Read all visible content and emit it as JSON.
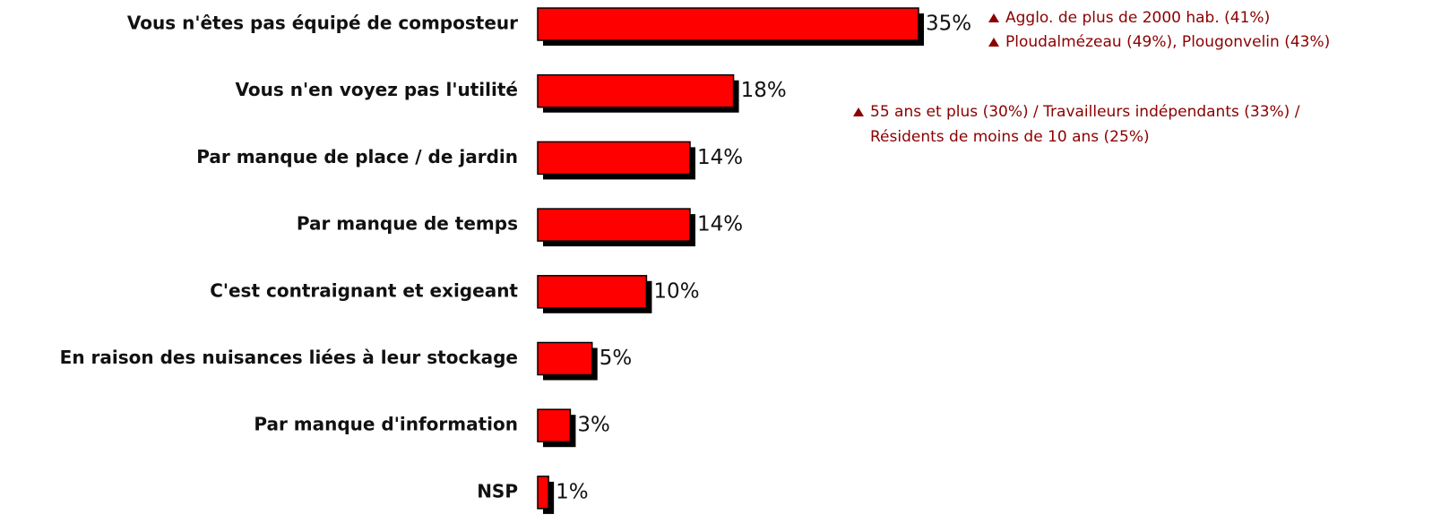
{
  "chart_data": {
    "type": "bar",
    "orientation": "horizontal",
    "categories": [
      "Vous n'êtes pas équipé de composteur",
      "Vous n'en voyez pas l'utilité",
      "Par manque de place / de jardin",
      "Par manque de temps",
      "C'est contraignant et exigeant",
      "En raison des nuisances liées à leur stockage",
      "Par manque d'information",
      "NSP"
    ],
    "values": [
      35,
      18,
      14,
      14,
      10,
      5,
      3,
      1
    ],
    "value_labels": [
      "35%",
      "18%",
      "14%",
      "14%",
      "10%",
      "5%",
      "3%",
      "1%"
    ],
    "color": "#ff0000",
    "annotations": [
      "Agglo. de plus de 2000 hab. (41%)",
      "Ploudalmézeau (49%), Plougonvelin (43%)",
      "55 ans et plus (30%) / Travailleurs indépendants (33%) /",
      "Résidents de moins de 10 ans (25%)"
    ]
  }
}
